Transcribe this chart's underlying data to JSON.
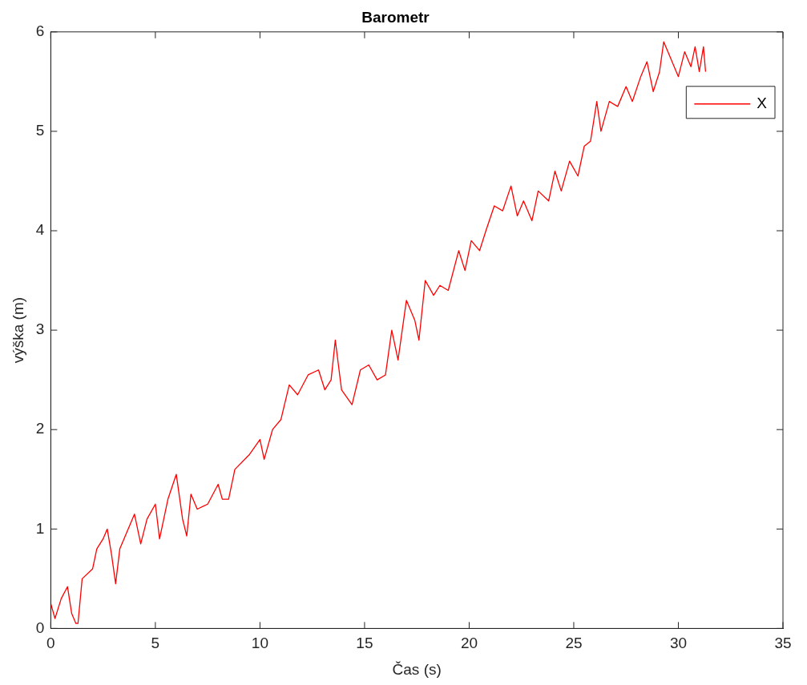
{
  "chart_data": {
    "type": "line",
    "title": "Barometr",
    "xlabel": "Čas (s)",
    "ylabel": "výška (m)",
    "xlim": [
      0,
      35
    ],
    "xticks": [
      0,
      5,
      10,
      15,
      20,
      25,
      30,
      35
    ],
    "ylim": [
      0,
      6
    ],
    "yticks": [
      0,
      1,
      2,
      3,
      4,
      5,
      6
    ],
    "grid": false,
    "legend": "top right",
    "marker": "none",
    "line_style": "solid",
    "series": [
      {
        "name": "X",
        "color": "#ff0000",
        "x": [
          0,
          0.2,
          0.5,
          0.8,
          1.0,
          1.2,
          1.3,
          1.5,
          2.0,
          2.2,
          2.5,
          2.7,
          2.9,
          3.1,
          3.3,
          3.6,
          4.0,
          4.3,
          4.6,
          5.0,
          5.2,
          5.6,
          6.0,
          6.3,
          6.5,
          6.7,
          7.0,
          7.5,
          8.0,
          8.2,
          8.5,
          8.8,
          9.5,
          10.0,
          10.2,
          10.6,
          11.0,
          11.4,
          11.8,
          12.3,
          12.8,
          13.1,
          13.4,
          13.6,
          13.9,
          14.4,
          14.8,
          15.2,
          15.6,
          16.0,
          16.3,
          16.6,
          17.0,
          17.4,
          17.6,
          17.9,
          18.3,
          18.6,
          19.0,
          19.5,
          19.8,
          20.1,
          20.5,
          20.8,
          21.2,
          21.6,
          22.0,
          22.3,
          22.6,
          23.0,
          23.3,
          23.8,
          24.1,
          24.4,
          24.8,
          25.2,
          25.5,
          25.8,
          26.1,
          26.3,
          26.7,
          27.1,
          27.5,
          27.8,
          28.2,
          28.5,
          28.8,
          29.1,
          29.3,
          29.6,
          30.0,
          30.3,
          30.6,
          30.8,
          31.0,
          31.2,
          31.3
        ],
        "values": [
          0.25,
          0.1,
          0.3,
          0.42,
          0.15,
          0.05,
          0.05,
          0.5,
          0.6,
          0.8,
          0.9,
          1.0,
          0.75,
          0.45,
          0.8,
          0.95,
          1.15,
          0.85,
          1.1,
          1.25,
          0.9,
          1.3,
          1.55,
          1.1,
          0.93,
          1.35,
          1.2,
          1.25,
          1.45,
          1.3,
          1.3,
          1.6,
          1.75,
          1.9,
          1.7,
          2.0,
          2.1,
          2.45,
          2.35,
          2.55,
          2.6,
          2.4,
          2.5,
          2.9,
          2.4,
          2.25,
          2.6,
          2.65,
          2.5,
          2.55,
          3.0,
          2.7,
          3.3,
          3.1,
          2.9,
          3.5,
          3.35,
          3.45,
          3.4,
          3.8,
          3.6,
          3.9,
          3.8,
          4.0,
          4.25,
          4.2,
          4.45,
          4.15,
          4.3,
          4.1,
          4.4,
          4.3,
          4.6,
          4.4,
          4.7,
          4.55,
          4.85,
          4.9,
          5.3,
          5.0,
          5.3,
          5.25,
          5.45,
          5.3,
          5.55,
          5.7,
          5.4,
          5.6,
          5.9,
          5.75,
          5.55,
          5.8,
          5.65,
          5.85,
          5.6,
          5.85,
          5.6
        ]
      }
    ]
  }
}
